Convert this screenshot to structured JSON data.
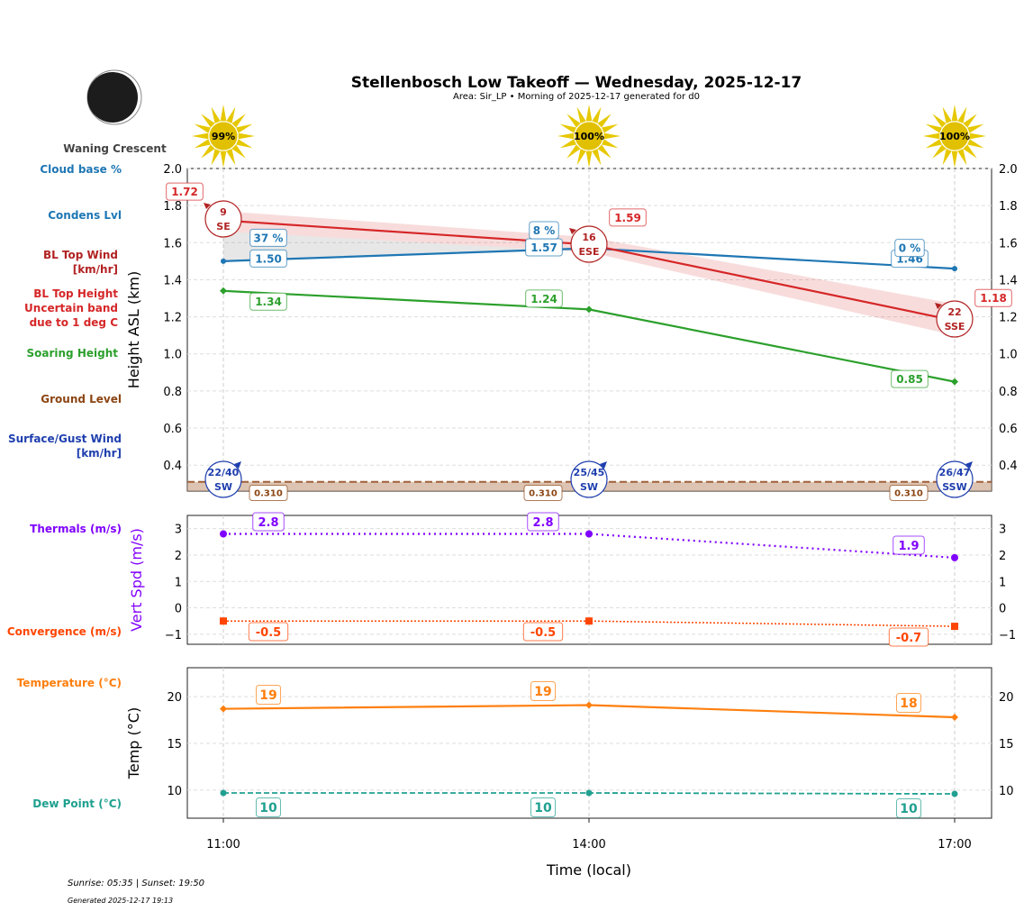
{
  "title": "Stellenbosch Low Takeoff — Wednesday, 2025-12-17",
  "subtitle": "Area: Sir_LP • Morning of 2025-12-17 generated for d0",
  "moon": {
    "phase": "Waning Crescent",
    "icon": "moon-icon"
  },
  "footer": {
    "sun": "Sunrise: 05:35 | Sunset: 19:50",
    "generated": "Generated 2025-12-17 19:13"
  },
  "colors": {
    "bl_top": "#d62728",
    "condens": "#1f77b4",
    "soaring": "#2ca02c",
    "ground": "#8b4513",
    "surface_wind": "#1f3fae",
    "bl_wind": "#b22222",
    "thermals": "#8000ff",
    "convergence": "#ff4500",
    "temperature": "#ff7f0e",
    "dew": "#20a090"
  },
  "chart_data": [
    {
      "type": "line",
      "ylabel": "Height ASL (km)",
      "ylim": [
        0.26,
        2.0
      ],
      "yticks": [
        "0.4",
        "0.6",
        "0.8",
        "1.0",
        "1.2",
        "1.4",
        "1.6",
        "1.8",
        "2.0"
      ],
      "grid": true,
      "x": [
        "11:00",
        "14:00",
        "17:00"
      ],
      "legend_labels": [
        "Cloud base %",
        "Condens Lvl",
        "BL Top Wind\n[km/hr]",
        "BL Top Height\nUncertain band\ndue to 1 deg C",
        "Soaring Height",
        "Ground Level",
        "Surface/Gust Wind\n[km/hr]"
      ],
      "sun_percent": [
        "99%",
        "100%",
        "100%"
      ],
      "bl_top": {
        "values": [
          1.72,
          1.59,
          1.18
        ],
        "labels": [
          "1.72",
          "1.59",
          "1.18"
        ],
        "band_upper": [
          1.77,
          1.63,
          1.27
        ],
        "band_lower": [
          1.66,
          1.55,
          1.1
        ]
      },
      "condens": {
        "values": [
          1.5,
          1.57,
          1.46
        ],
        "labels": [
          "1.50",
          "1.57",
          "1.46"
        ]
      },
      "cloud_base": [
        "37 %",
        "8 %",
        "0 %"
      ],
      "soaring": {
        "values": [
          1.34,
          1.24,
          0.85
        ],
        "labels": [
          "1.34",
          "1.24",
          "0.85"
        ]
      },
      "ground": {
        "value": 0.31,
        "label": "0.310"
      },
      "bl_wind": [
        {
          "speed": "9",
          "dir": "SE"
        },
        {
          "speed": "16",
          "dir": "ESE"
        },
        {
          "speed": "22",
          "dir": "SSE"
        }
      ],
      "surface_wind": [
        {
          "speed": "22/40",
          "dir": "SW"
        },
        {
          "speed": "25/45",
          "dir": "SW"
        },
        {
          "speed": "26/47",
          "dir": "SSW"
        }
      ]
    },
    {
      "type": "line",
      "ylabel": "Vert Spd (m/s)",
      "ylim": [
        -1.38,
        3.5
      ],
      "yticks": [
        "−1",
        "0",
        "1",
        "2",
        "3"
      ],
      "grid": true,
      "legend_labels": [
        "Thermals (m/s)",
        "Convergence (m/s)"
      ],
      "thermals": {
        "values": [
          2.8,
          2.8,
          1.9
        ],
        "labels": [
          "2.8",
          "2.8",
          "1.9"
        ]
      },
      "convergence": {
        "values": [
          -0.5,
          -0.5,
          -0.7
        ],
        "labels": [
          "-0.5",
          "-0.5",
          "-0.7"
        ]
      }
    },
    {
      "type": "line",
      "ylabel": "Temp (°C)",
      "xlabel": "Time (local)",
      "ylim": [
        7.0,
        23.1
      ],
      "yticks": [
        "10",
        "15",
        "20"
      ],
      "xticks": [
        "11:00",
        "14:00",
        "17:00"
      ],
      "grid": true,
      "legend_labels": [
        "Temperature (°C)",
        "Dew Point (°C)"
      ],
      "temperature": {
        "values": [
          18.7,
          19.1,
          17.8
        ],
        "labels": [
          "19",
          "19",
          "18"
        ]
      },
      "dew_point": {
        "values": [
          9.7,
          9.7,
          9.6
        ],
        "labels": [
          "10",
          "10",
          "10"
        ]
      }
    }
  ]
}
